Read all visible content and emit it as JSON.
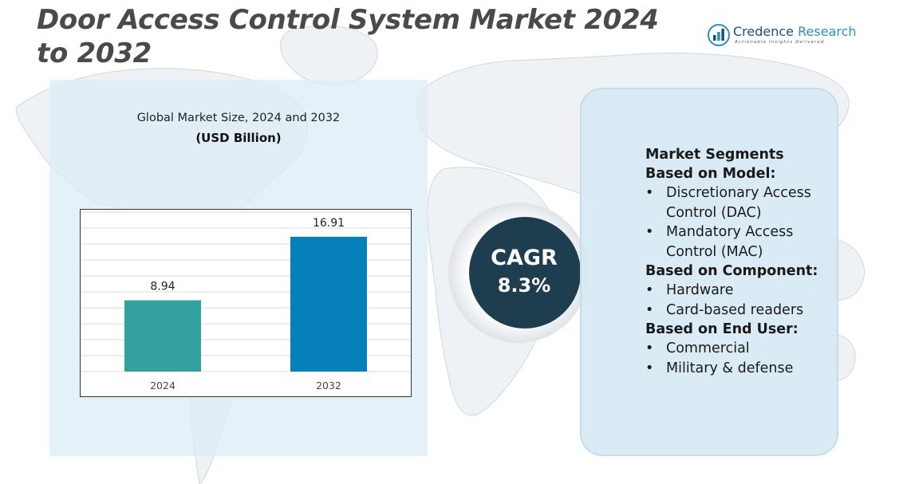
{
  "title": "Door Access Control System Market 2024 to 2032",
  "logo": {
    "name_first": "Credence",
    "name_second": " Research",
    "tagline": "Actionable Insights Delivered"
  },
  "chart_data": {
    "type": "bar",
    "title": "Global Market Size, 2024 and 2032",
    "subtitle": "(USD Billion)",
    "categories": [
      "2024",
      "2032"
    ],
    "values": [
      8.94,
      16.91
    ],
    "value_labels": [
      "8.94",
      "16.91"
    ],
    "colors": [
      "#33a29f",
      "#0680b8"
    ],
    "ylim": [
      0,
      20
    ],
    "grid": true,
    "xlabel": "",
    "ylabel": ""
  },
  "cagr": {
    "label": "CAGR",
    "value": "8.3%",
    "circle_color": "#1e3e4f"
  },
  "segments": {
    "heading": "Market Segments",
    "groups": [
      {
        "title": "Based on Model:",
        "items": [
          "Discretionary Access Control (DAC)",
          "Mandatory Access Control (MAC)"
        ]
      },
      {
        "title": "Based on Component:",
        "items": [
          "Hardware",
          "Card-based readers"
        ]
      },
      {
        "title": "Based on End User:",
        "items": [
          "Commercial",
          "Military & defense"
        ]
      }
    ]
  }
}
